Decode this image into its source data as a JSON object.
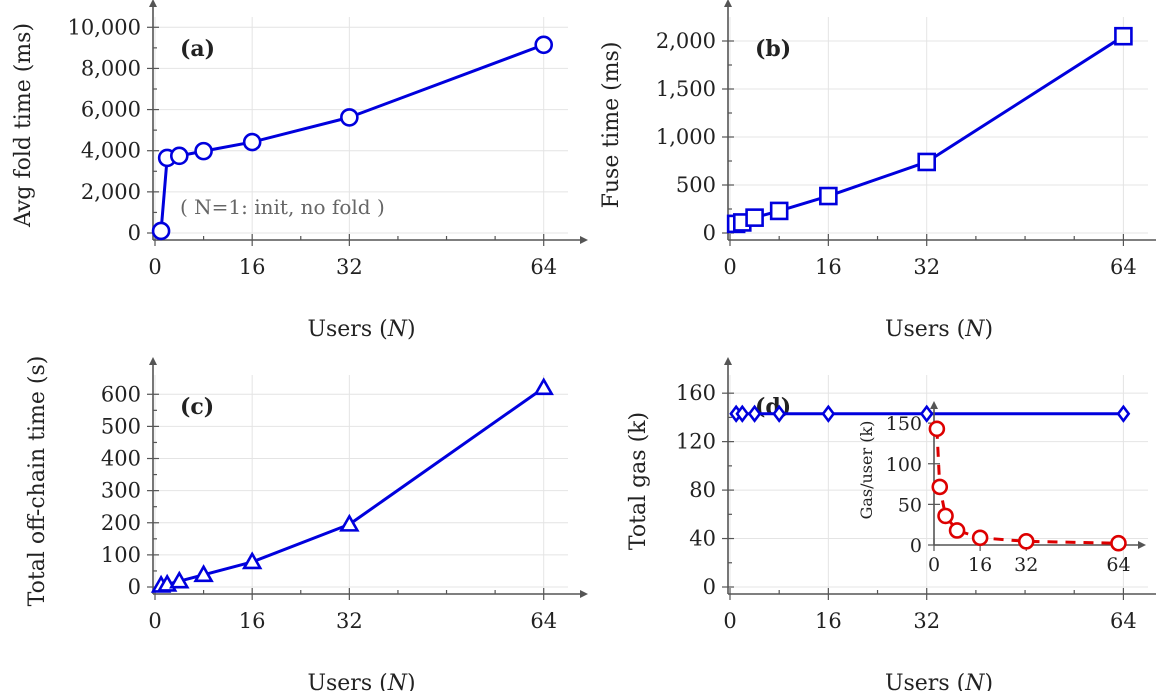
{
  "chart_data": [
    {
      "type": "line",
      "panel_label": "(a)",
      "xlabel": "Users",
      "xvar": "N",
      "ylabel": "Avg fold time (ms)",
      "x": [
        1,
        2,
        4,
        8,
        16,
        32,
        64
      ],
      "series": [
        {
          "values": [
            100,
            3650,
            3750,
            3980,
            4420,
            5620,
            9150
          ],
          "color": "#0000dd",
          "marker": "circle"
        }
      ],
      "xticks": [
        "0",
        "16",
        "32",
        "64"
      ],
      "yticks": [
        "0",
        "2,000",
        "4,000",
        "6,000",
        "8,000",
        "10,000"
      ],
      "xlim": [
        0,
        68
      ],
      "ylim": [
        0,
        10500
      ],
      "grid": true,
      "annotation": "( N=1: init, no fold )"
    },
    {
      "type": "line",
      "panel_label": "(b)",
      "xlabel": "Users",
      "xvar": "N",
      "ylabel": "Fuse time (ms)",
      "x": [
        1,
        2,
        4,
        8,
        16,
        32,
        64
      ],
      "series": [
        {
          "values": [
            95,
            110,
            160,
            230,
            385,
            740,
            2050
          ],
          "color": "#0000dd",
          "marker": "square"
        }
      ],
      "xticks": [
        "0",
        "16",
        "32",
        "64"
      ],
      "yticks": [
        "0",
        "500",
        "1,000",
        "1,500",
        "2,000"
      ],
      "xlim": [
        0,
        68
      ],
      "ylim": [
        0,
        2250
      ],
      "grid": true
    },
    {
      "type": "line",
      "panel_label": "(c)",
      "xlabel": "Users",
      "xvar": "N",
      "ylabel": "Total off-chain time (s)",
      "x": [
        1,
        2,
        4,
        8,
        16,
        32,
        64
      ],
      "series": [
        {
          "values": [
            5,
            8,
            18,
            38,
            78,
            195,
            620
          ],
          "color": "#0000dd",
          "marker": "triangle"
        }
      ],
      "xticks": [
        "0",
        "16",
        "32",
        "64"
      ],
      "yticks": [
        "0",
        "100",
        "200",
        "300",
        "400",
        "500",
        "600"
      ],
      "xlim": [
        0,
        68
      ],
      "ylim": [
        0,
        660
      ],
      "grid": true
    },
    {
      "type": "line",
      "panel_label": "(d)",
      "xlabel": "Users",
      "xvar": "N",
      "ylabel": "Total gas (k)",
      "x": [
        1,
        2,
        4,
        8,
        16,
        32,
        64
      ],
      "series": [
        {
          "values": [
            143,
            143,
            143,
            143,
            143,
            143,
            143
          ],
          "color": "#0000dd",
          "marker": "diamond"
        }
      ],
      "xticks": [
        "0",
        "16",
        "32",
        "64"
      ],
      "yticks": [
        "0",
        "40",
        "80",
        "120",
        "160"
      ],
      "xlim": [
        0,
        68
      ],
      "ylim": [
        0,
        175
      ],
      "grid": true,
      "inset": {
        "ylabel": "Gas/user (k)",
        "x": [
          1,
          2,
          4,
          8,
          16,
          32,
          64
        ],
        "series": [
          {
            "values": [
              143,
              71.5,
              35.8,
              17.9,
              8.9,
              4.5,
              2.2
            ],
            "color": "#dd0000",
            "marker": "circle",
            "dashed": true
          }
        ],
        "xticks": [
          "0",
          "16",
          "32",
          "64"
        ],
        "yticks": [
          "0",
          "50",
          "100",
          "150"
        ],
        "xlim": [
          0,
          68
        ],
        "ylim": [
          0,
          160
        ]
      }
    }
  ]
}
